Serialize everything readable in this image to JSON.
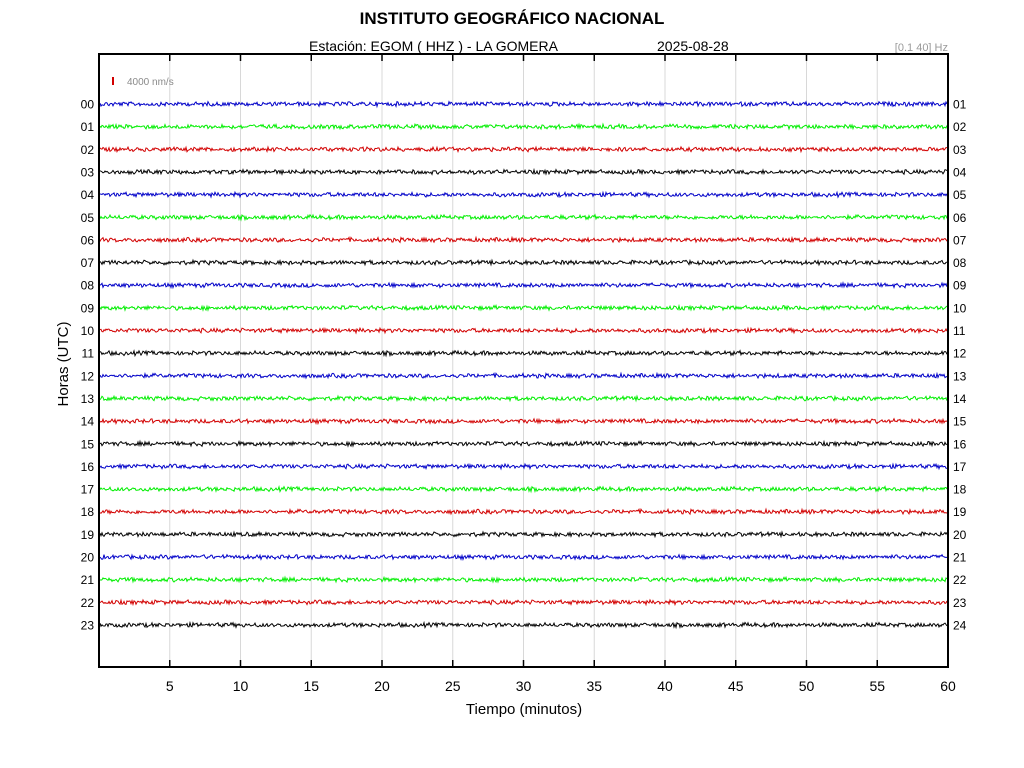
{
  "header": {
    "title": "INSTITUTO GEOGRÁFICO NACIONAL",
    "station": "Estación:  EGOM ( HHZ ) - LA GOMERA",
    "date": "2025-08-28",
    "filter": "[0.1 40] Hz"
  },
  "chart_data": {
    "type": "line",
    "title": "INSTITUTO GEOGRÁFICO NACIONAL",
    "xlabel": "Tiempo (minutos)",
    "ylabel": "Horas (UTC)",
    "xlim": [
      0,
      60
    ],
    "x_ticks": [
      5,
      10,
      15,
      20,
      25,
      30,
      35,
      40,
      45,
      50,
      55,
      60
    ],
    "grid": true,
    "scale_label": "4000 nm/s",
    "colors": {
      "blue": "#0000c8",
      "green": "#00ee00",
      "red": "#d20000",
      "black": "#000000",
      "scale": "#d20000"
    },
    "series": [
      {
        "left_label": "00",
        "right_label": "01",
        "color": "blue"
      },
      {
        "left_label": "01",
        "right_label": "02",
        "color": "green"
      },
      {
        "left_label": "02",
        "right_label": "03",
        "color": "red"
      },
      {
        "left_label": "03",
        "right_label": "04",
        "color": "black"
      },
      {
        "left_label": "04",
        "right_label": "05",
        "color": "blue"
      },
      {
        "left_label": "05",
        "right_label": "06",
        "color": "green"
      },
      {
        "left_label": "06",
        "right_label": "07",
        "color": "red"
      },
      {
        "left_label": "07",
        "right_label": "08",
        "color": "black"
      },
      {
        "left_label": "08",
        "right_label": "09",
        "color": "blue"
      },
      {
        "left_label": "09",
        "right_label": "10",
        "color": "green"
      },
      {
        "left_label": "10",
        "right_label": "11",
        "color": "red"
      },
      {
        "left_label": "11",
        "right_label": "12",
        "color": "black"
      },
      {
        "left_label": "12",
        "right_label": "13",
        "color": "blue"
      },
      {
        "left_label": "13",
        "right_label": "14",
        "color": "green"
      },
      {
        "left_label": "14",
        "right_label": "15",
        "color": "red"
      },
      {
        "left_label": "15",
        "right_label": "16",
        "color": "black"
      },
      {
        "left_label": "16",
        "right_label": "17",
        "color": "blue"
      },
      {
        "left_label": "17",
        "right_label": "18",
        "color": "green"
      },
      {
        "left_label": "18",
        "right_label": "19",
        "color": "red"
      },
      {
        "left_label": "19",
        "right_label": "20",
        "color": "black"
      },
      {
        "left_label": "20",
        "right_label": "21",
        "color": "blue"
      },
      {
        "left_label": "21",
        "right_label": "22",
        "color": "green"
      },
      {
        "left_label": "22",
        "right_label": "23",
        "color": "red"
      },
      {
        "left_label": "23",
        "right_label": "24",
        "color": "black"
      }
    ]
  }
}
